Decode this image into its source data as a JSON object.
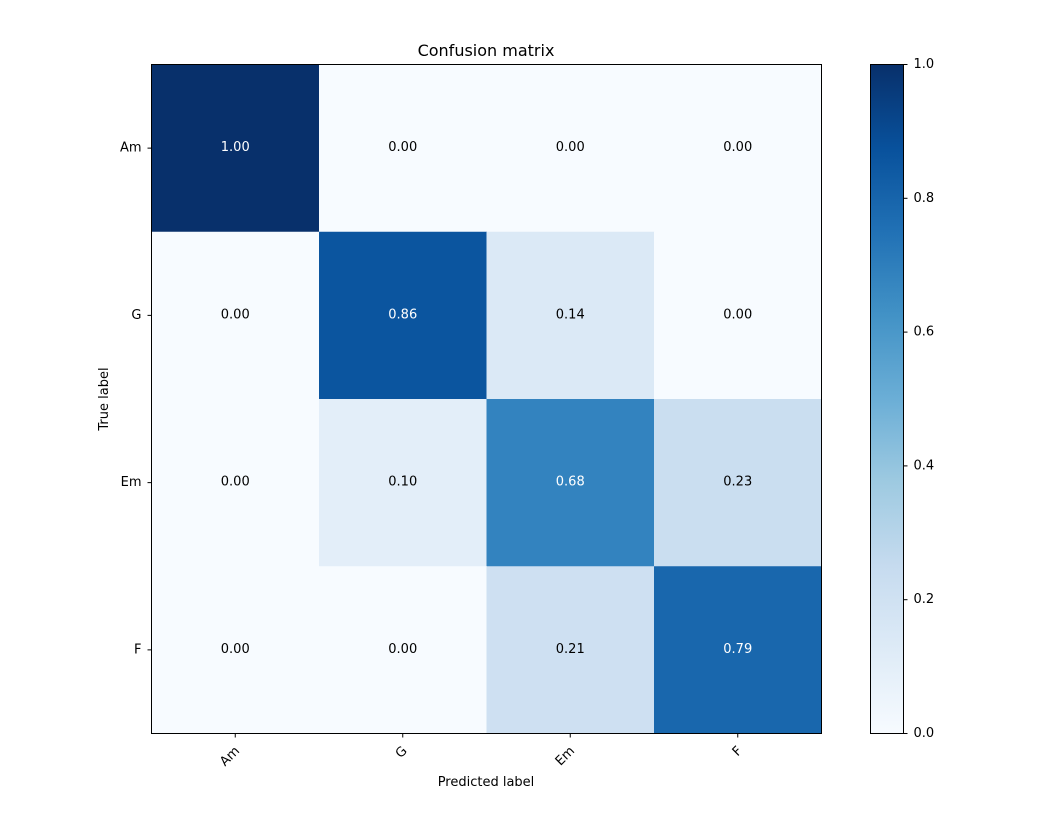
{
  "chart_data": {
    "type": "heatmap",
    "title": "Confusion matrix",
    "xlabel": "Predicted label",
    "ylabel": "True label",
    "x_categories": [
      "Am",
      "G",
      "Em",
      "F"
    ],
    "y_categories": [
      "Am",
      "G",
      "Em",
      "F"
    ],
    "values": [
      [
        1.0,
        0.0,
        0.0,
        0.0
      ],
      [
        0.0,
        0.86,
        0.14,
        0.0
      ],
      [
        0.0,
        0.1,
        0.68,
        0.23
      ],
      [
        0.0,
        0.0,
        0.21,
        0.79
      ]
    ],
    "value_format": "0.00",
    "colormap": "Blues",
    "colorbar": {
      "range": [
        0.0,
        1.0
      ],
      "ticks": [
        0.0,
        0.2,
        0.4,
        0.6,
        0.8,
        1.0
      ],
      "tick_labels": [
        "0.0",
        "0.2",
        "0.4",
        "0.6",
        "0.8",
        "1.0"
      ],
      "placement": "right"
    },
    "text_color_threshold": 0.5,
    "text_colors": {
      "light": "#ffffff",
      "dark": "#000000"
    }
  }
}
